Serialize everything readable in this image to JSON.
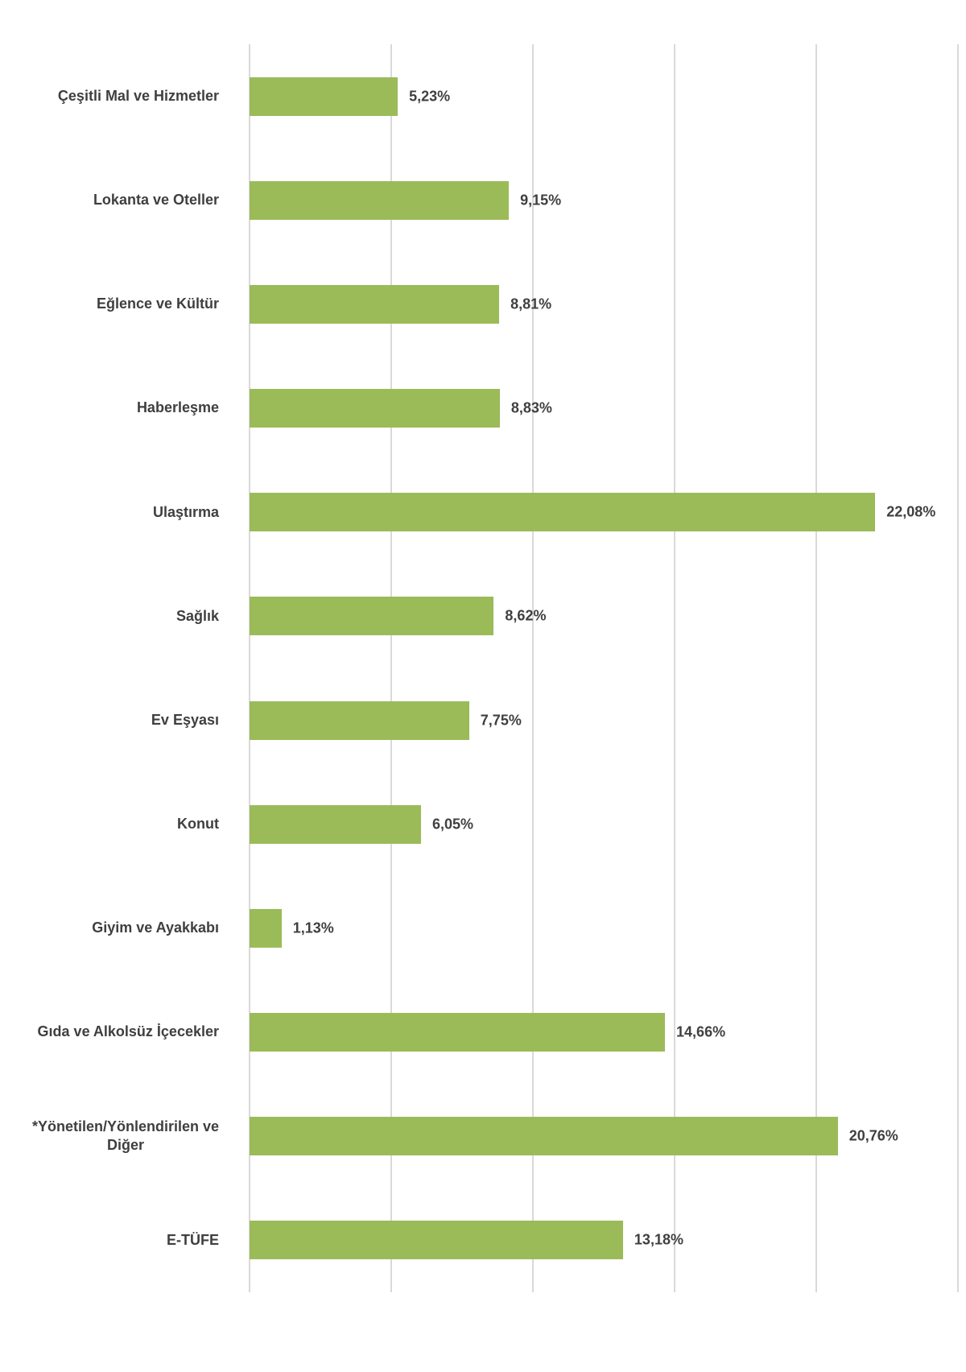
{
  "chart_data": {
    "type": "bar",
    "orientation": "horizontal",
    "title": "",
    "xlabel": "",
    "ylabel": "",
    "legend": "none",
    "grid": "vertical-only",
    "xlim": [
      0,
      25
    ],
    "gridline_values": [
      0,
      5,
      10,
      15,
      20,
      25
    ],
    "categories": [
      "Çeşitli Mal ve Hizmetler",
      "Lokanta ve Oteller",
      "Eğlence ve Kültür",
      "Haberleşme",
      "Ulaştırma",
      "Sağlık",
      "Ev Eşyası",
      "Konut",
      "Giyim ve Ayakkabı",
      "Gıda ve Alkolsüz İçecekler",
      "*Yönetilen/Yönlendirilen ve\nDiğer",
      "E-TÜFE"
    ],
    "values": [
      5.23,
      9.15,
      8.81,
      8.83,
      22.08,
      8.62,
      7.75,
      6.05,
      1.13,
      14.66,
      20.76,
      13.18
    ],
    "data_labels": [
      "5,23%",
      "9,15%",
      "8,81%",
      "8,83%",
      "22,08%",
      "8,62%",
      "7,75%",
      "6,05%",
      "1,13%",
      "14,66%",
      "20,76%",
      "13,18%"
    ],
    "colors": {
      "bar": "#9BBB59",
      "gridline": "#D9D9D9",
      "text": "#3F3F3F",
      "background": "#FFFFFF"
    }
  }
}
